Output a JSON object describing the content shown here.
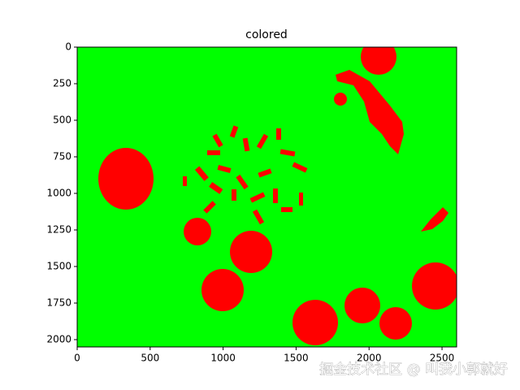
{
  "chart_data": {
    "type": "image",
    "title": "colored",
    "xlim": [
      0,
      2600
    ],
    "ylim": [
      2050,
      0
    ],
    "xticks": [
      0,
      500,
      1000,
      1500,
      2000,
      2500
    ],
    "yticks": [
      0,
      250,
      500,
      750,
      1000,
      1250,
      1500,
      1750,
      2000
    ],
    "background_color": "#00ff00",
    "object_color": "#ff0000",
    "watermark": "掘金技术社区 @ 叫我小郭就好"
  }
}
